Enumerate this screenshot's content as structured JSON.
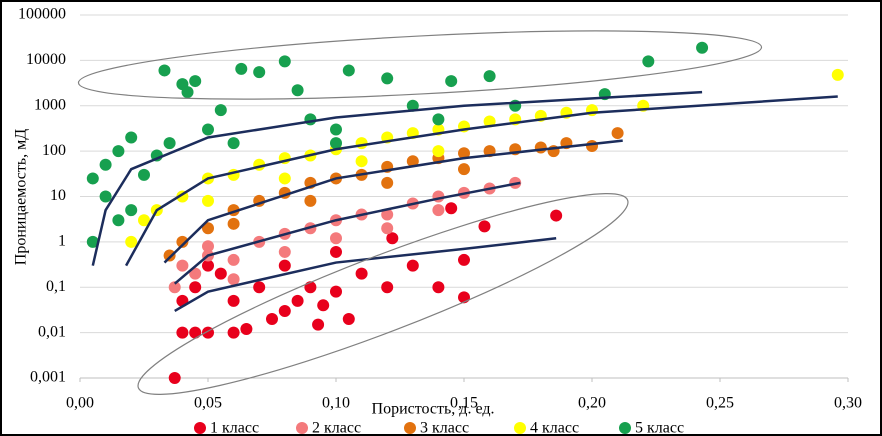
{
  "chart_data": {
    "type": "scatter",
    "xlabel": "Пористость, д. ед.",
    "ylabel": "Проницаемость, мД",
    "log_y": true,
    "grid": true,
    "legend": "bottom",
    "xlim": [
      0,
      0.3
    ],
    "xticks": [
      {
        "value": 0,
        "label": "0,00"
      },
      {
        "value": 0.05,
        "label": "0,05"
      },
      {
        "value": 0.1,
        "label": "0,10"
      },
      {
        "value": 0.15,
        "label": "0,15"
      },
      {
        "value": 0.2,
        "label": "0,20"
      },
      {
        "value": 0.25,
        "label": "0,25"
      },
      {
        "value": 0.3,
        "label": "0,30"
      }
    ],
    "ylim": [
      0.001,
      100000
    ],
    "yticks": [
      {
        "value": 0.001,
        "label": "0,001"
      },
      {
        "value": 0.01,
        "label": "0,01"
      },
      {
        "value": 0.1,
        "label": "0,1"
      },
      1,
      10,
      100,
      1000,
      10000,
      100000
    ],
    "series": [
      {
        "name": "1 класс",
        "color": "#e8001c",
        "x": [
          0.037,
          0.04,
          0.045,
          0.05,
          0.06,
          0.04,
          0.045,
          0.05,
          0.055,
          0.06,
          0.065,
          0.07,
          0.075,
          0.08,
          0.085,
          0.09,
          0.095,
          0.1,
          0.105,
          0.11,
          0.12,
          0.122,
          0.13,
          0.14,
          0.145,
          0.15,
          0.15,
          0.158,
          0.186,
          0.093,
          0.08,
          0.1
        ],
        "values": [
          0.001,
          0.01,
          0.01,
          0.01,
          0.01,
          0.05,
          0.1,
          0.3,
          0.2,
          0.05,
          0.012,
          0.1,
          0.02,
          0.3,
          0.05,
          0.1,
          0.04,
          0.6,
          0.02,
          0.2,
          0.1,
          1.2,
          0.3,
          0.1,
          5.5,
          0.06,
          0.4,
          2.2,
          3.8,
          0.015,
          0.03,
          0.08
        ]
      },
      {
        "name": "2 класс",
        "color": "#f47a7c",
        "x": [
          0.037,
          0.04,
          0.045,
          0.05,
          0.06,
          0.07,
          0.08,
          0.09,
          0.1,
          0.11,
          0.12,
          0.13,
          0.14,
          0.15,
          0.16,
          0.17,
          0.06,
          0.08,
          0.1,
          0.12,
          0.14,
          0.05
        ],
        "values": [
          0.1,
          0.3,
          0.2,
          0.5,
          0.4,
          1,
          1.5,
          2,
          3,
          4,
          4,
          7,
          10,
          12,
          15,
          20,
          0.15,
          0.6,
          1.2,
          2,
          5,
          0.8
        ]
      },
      {
        "name": "3 класс",
        "color": "#e2720f",
        "x": [
          0.035,
          0.04,
          0.05,
          0.06,
          0.07,
          0.08,
          0.09,
          0.1,
          0.11,
          0.12,
          0.13,
          0.14,
          0.15,
          0.16,
          0.17,
          0.18,
          0.19,
          0.2,
          0.21,
          0.185,
          0.06,
          0.09,
          0.12,
          0.15
        ],
        "values": [
          0.5,
          1,
          2,
          5,
          8,
          12,
          20,
          25,
          30,
          45,
          60,
          70,
          90,
          100,
          110,
          120,
          150,
          130,
          250,
          100,
          2.5,
          8,
          20,
          40
        ]
      },
      {
        "name": "4 класс",
        "color": "#ffff00",
        "x": [
          0.02,
          0.025,
          0.03,
          0.04,
          0.05,
          0.06,
          0.07,
          0.08,
          0.09,
          0.1,
          0.11,
          0.12,
          0.13,
          0.14,
          0.15,
          0.16,
          0.17,
          0.18,
          0.19,
          0.2,
          0.22,
          0.296,
          0.05,
          0.08,
          0.11,
          0.14
        ],
        "values": [
          1,
          3,
          5,
          10,
          25,
          30,
          50,
          70,
          80,
          110,
          150,
          200,
          250,
          300,
          350,
          450,
          500,
          600,
          700,
          800,
          1000,
          4800,
          8,
          25,
          60,
          100
        ]
      },
      {
        "name": "5 класс",
        "color": "#17a04f",
        "x": [
          0.005,
          0.005,
          0.01,
          0.01,
          0.015,
          0.02,
          0.02,
          0.025,
          0.03,
          0.033,
          0.035,
          0.04,
          0.042,
          0.045,
          0.05,
          0.055,
          0.063,
          0.07,
          0.08,
          0.085,
          0.09,
          0.1,
          0.105,
          0.12,
          0.13,
          0.14,
          0.145,
          0.16,
          0.17,
          0.205,
          0.222,
          0.243,
          0.015,
          0.06,
          0.1
        ],
        "values": [
          25,
          1,
          10,
          50,
          100,
          5,
          200,
          30,
          80,
          6000,
          150,
          3000,
          2000,
          3500,
          300,
          800,
          6500,
          5500,
          9500,
          2200,
          500,
          300,
          6000,
          4000,
          1000,
          500,
          3500,
          4500,
          1000,
          1800,
          9500,
          19000,
          3,
          150,
          150
        ]
      }
    ],
    "trendline_color": "#1c2d5c",
    "trendlines": [
      {
        "x": [
          0.037,
          0.05,
          0.1,
          0.15,
          0.186
        ],
        "values": [
          0.03,
          0.08,
          0.35,
          0.7,
          1.2
        ]
      },
      {
        "x": [
          0.037,
          0.05,
          0.1,
          0.14,
          0.172
        ],
        "values": [
          0.12,
          0.5,
          3,
          9,
          20
        ]
      },
      {
        "x": [
          0.033,
          0.05,
          0.1,
          0.15,
          0.212
        ],
        "values": [
          0.35,
          3,
          25,
          70,
          170
        ]
      },
      {
        "x": [
          0.018,
          0.03,
          0.05,
          0.1,
          0.15,
          0.2,
          0.296
        ],
        "values": [
          0.3,
          5,
          25,
          110,
          300,
          700,
          1600
        ]
      },
      {
        "x": [
          0.005,
          0.01,
          0.02,
          0.05,
          0.1,
          0.15,
          0.243
        ],
        "values": [
          0.3,
          5,
          40,
          200,
          550,
          1000,
          2000
        ]
      }
    ]
  }
}
